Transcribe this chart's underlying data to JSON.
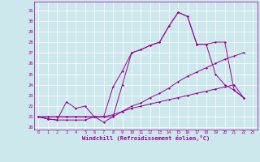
{
  "xlabel": "Windchill (Refroidissement éolien,°C)",
  "bg_color": "#cde8ec",
  "line_color": "#990099",
  "xlim": [
    -0.5,
    23.5
  ],
  "ylim": [
    19.8,
    31.8
  ],
  "yticks": [
    20,
    21,
    22,
    23,
    24,
    25,
    26,
    27,
    28,
    29,
    30,
    31
  ],
  "xticks": [
    0,
    1,
    2,
    3,
    4,
    5,
    6,
    7,
    8,
    9,
    10,
    11,
    12,
    13,
    14,
    15,
    16,
    17,
    18,
    19,
    20,
    21,
    22,
    23
  ],
  "series": [
    [
      21.0,
      20.8,
      20.7,
      20.7,
      20.7,
      20.7,
      21.0,
      20.5,
      21.0,
      24.0,
      27.0,
      27.3,
      27.7,
      28.0,
      29.5,
      30.8,
      30.4,
      27.8,
      27.8,
      28.0,
      28.0,
      23.5,
      22.8
    ],
    [
      21.0,
      20.8,
      20.7,
      22.4,
      21.8,
      22.0,
      21.0,
      21.0,
      23.8,
      25.3,
      27.0,
      27.3,
      27.7,
      28.0,
      29.5,
      30.8,
      30.4,
      27.8,
      27.8,
      25.0,
      24.0,
      23.5,
      22.8
    ],
    [
      21.0,
      21.0,
      21.0,
      21.0,
      21.0,
      21.0,
      21.0,
      21.0,
      21.0,
      21.5,
      22.0,
      22.3,
      22.8,
      23.2,
      23.7,
      24.3,
      24.8,
      25.2,
      25.6,
      26.0,
      26.4,
      26.7,
      27.0
    ],
    [
      21.0,
      21.0,
      21.0,
      21.0,
      21.0,
      21.0,
      21.0,
      21.0,
      21.2,
      21.5,
      21.8,
      22.0,
      22.2,
      22.4,
      22.6,
      22.8,
      23.0,
      23.2,
      23.4,
      23.6,
      23.8,
      24.0,
      22.8
    ]
  ]
}
